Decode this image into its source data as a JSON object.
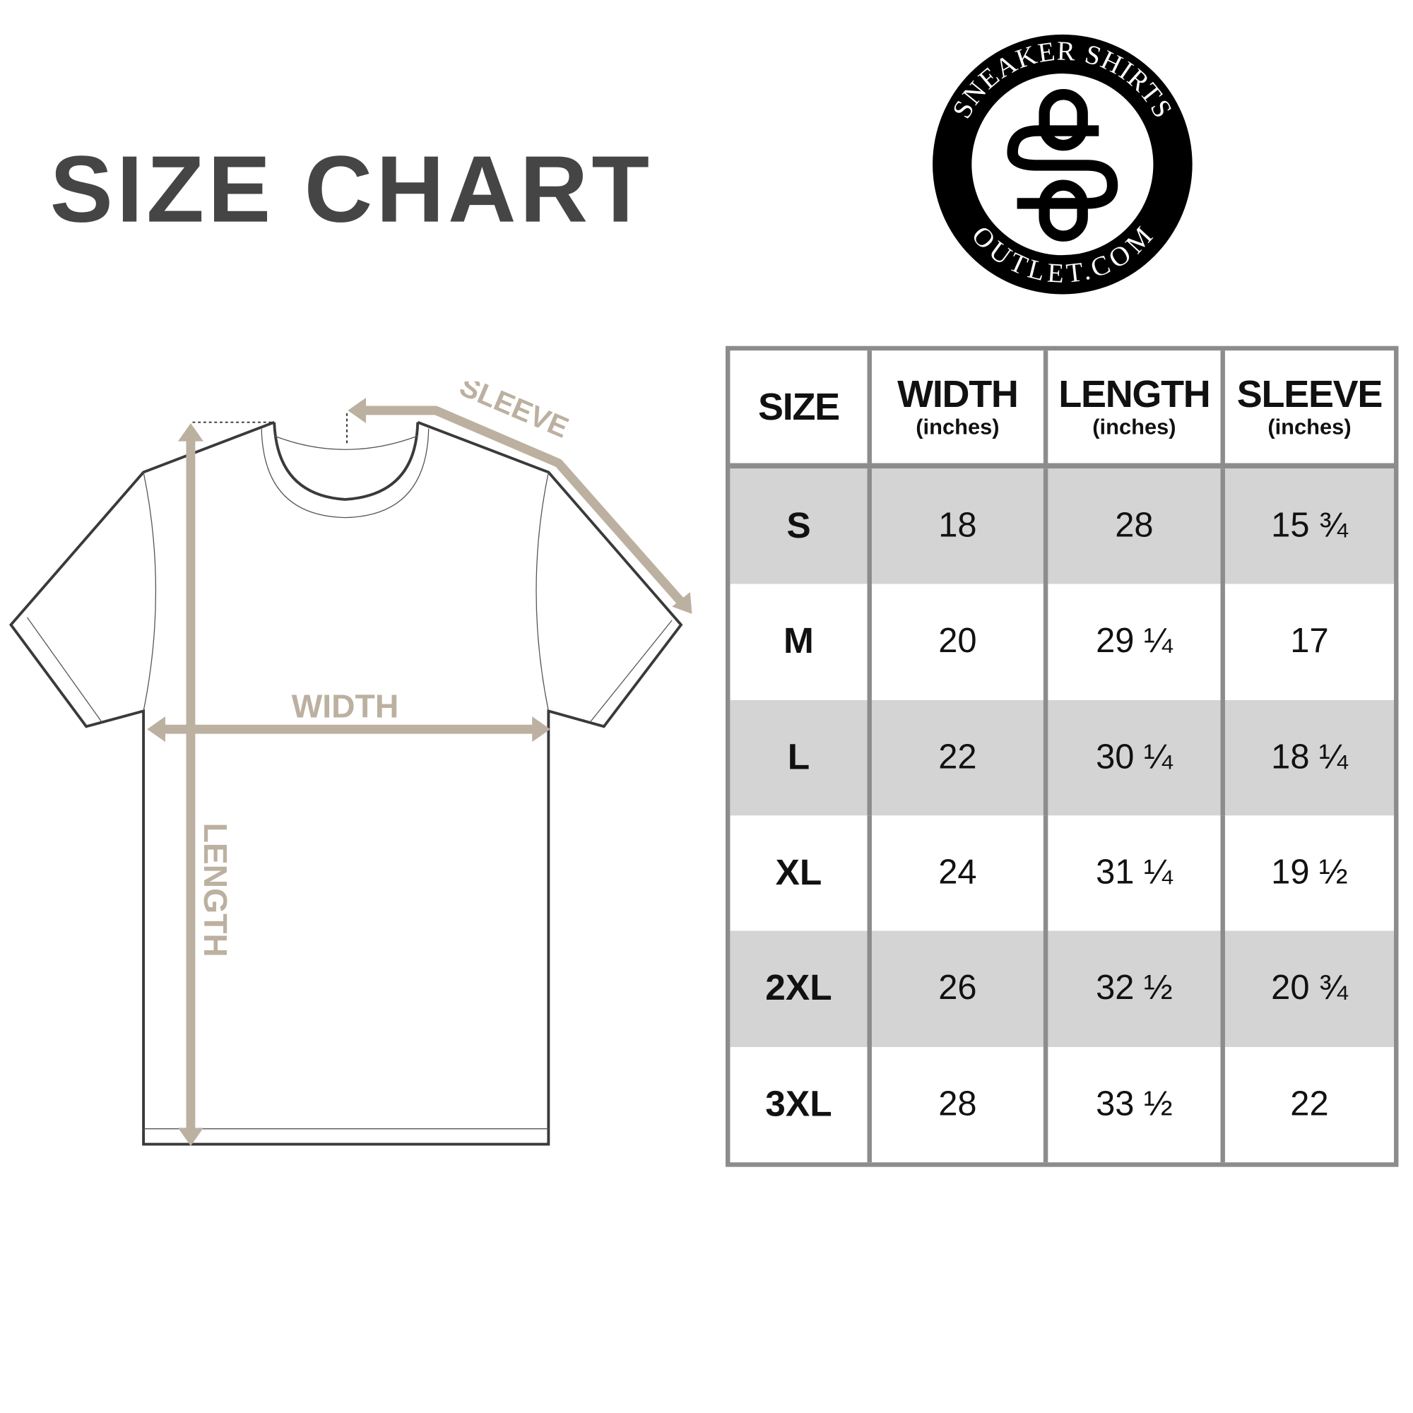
{
  "title": "SIZE CHART",
  "logo": {
    "top_text": "SNEAKER SHIRTS",
    "bottom_text": "OUTLET.COM",
    "monogram": "SO"
  },
  "diagram": {
    "sleeve_label": "SLEEVE",
    "width_label": "WIDTH",
    "length_label": "LENGTH",
    "arrow_color": "#bcb0a0"
  },
  "table": {
    "headers": [
      {
        "main": "SIZE",
        "sub": ""
      },
      {
        "main": "WIDTH",
        "sub": "(inches)"
      },
      {
        "main": "LENGTH",
        "sub": "(inches)"
      },
      {
        "main": "SLEEVE",
        "sub": "(inches)"
      }
    ],
    "rows": [
      [
        "S",
        "18",
        "28",
        "15 ¾"
      ],
      [
        "M",
        "20",
        "29 ¼",
        "17"
      ],
      [
        "L",
        "22",
        "30 ¼",
        "18 ¼"
      ],
      [
        "XL",
        "24",
        "31 ¼",
        "19 ½"
      ],
      [
        "2XL",
        "26",
        "32 ½",
        "20 ¾"
      ],
      [
        "3XL",
        "28",
        "33 ½",
        "22"
      ]
    ]
  }
}
